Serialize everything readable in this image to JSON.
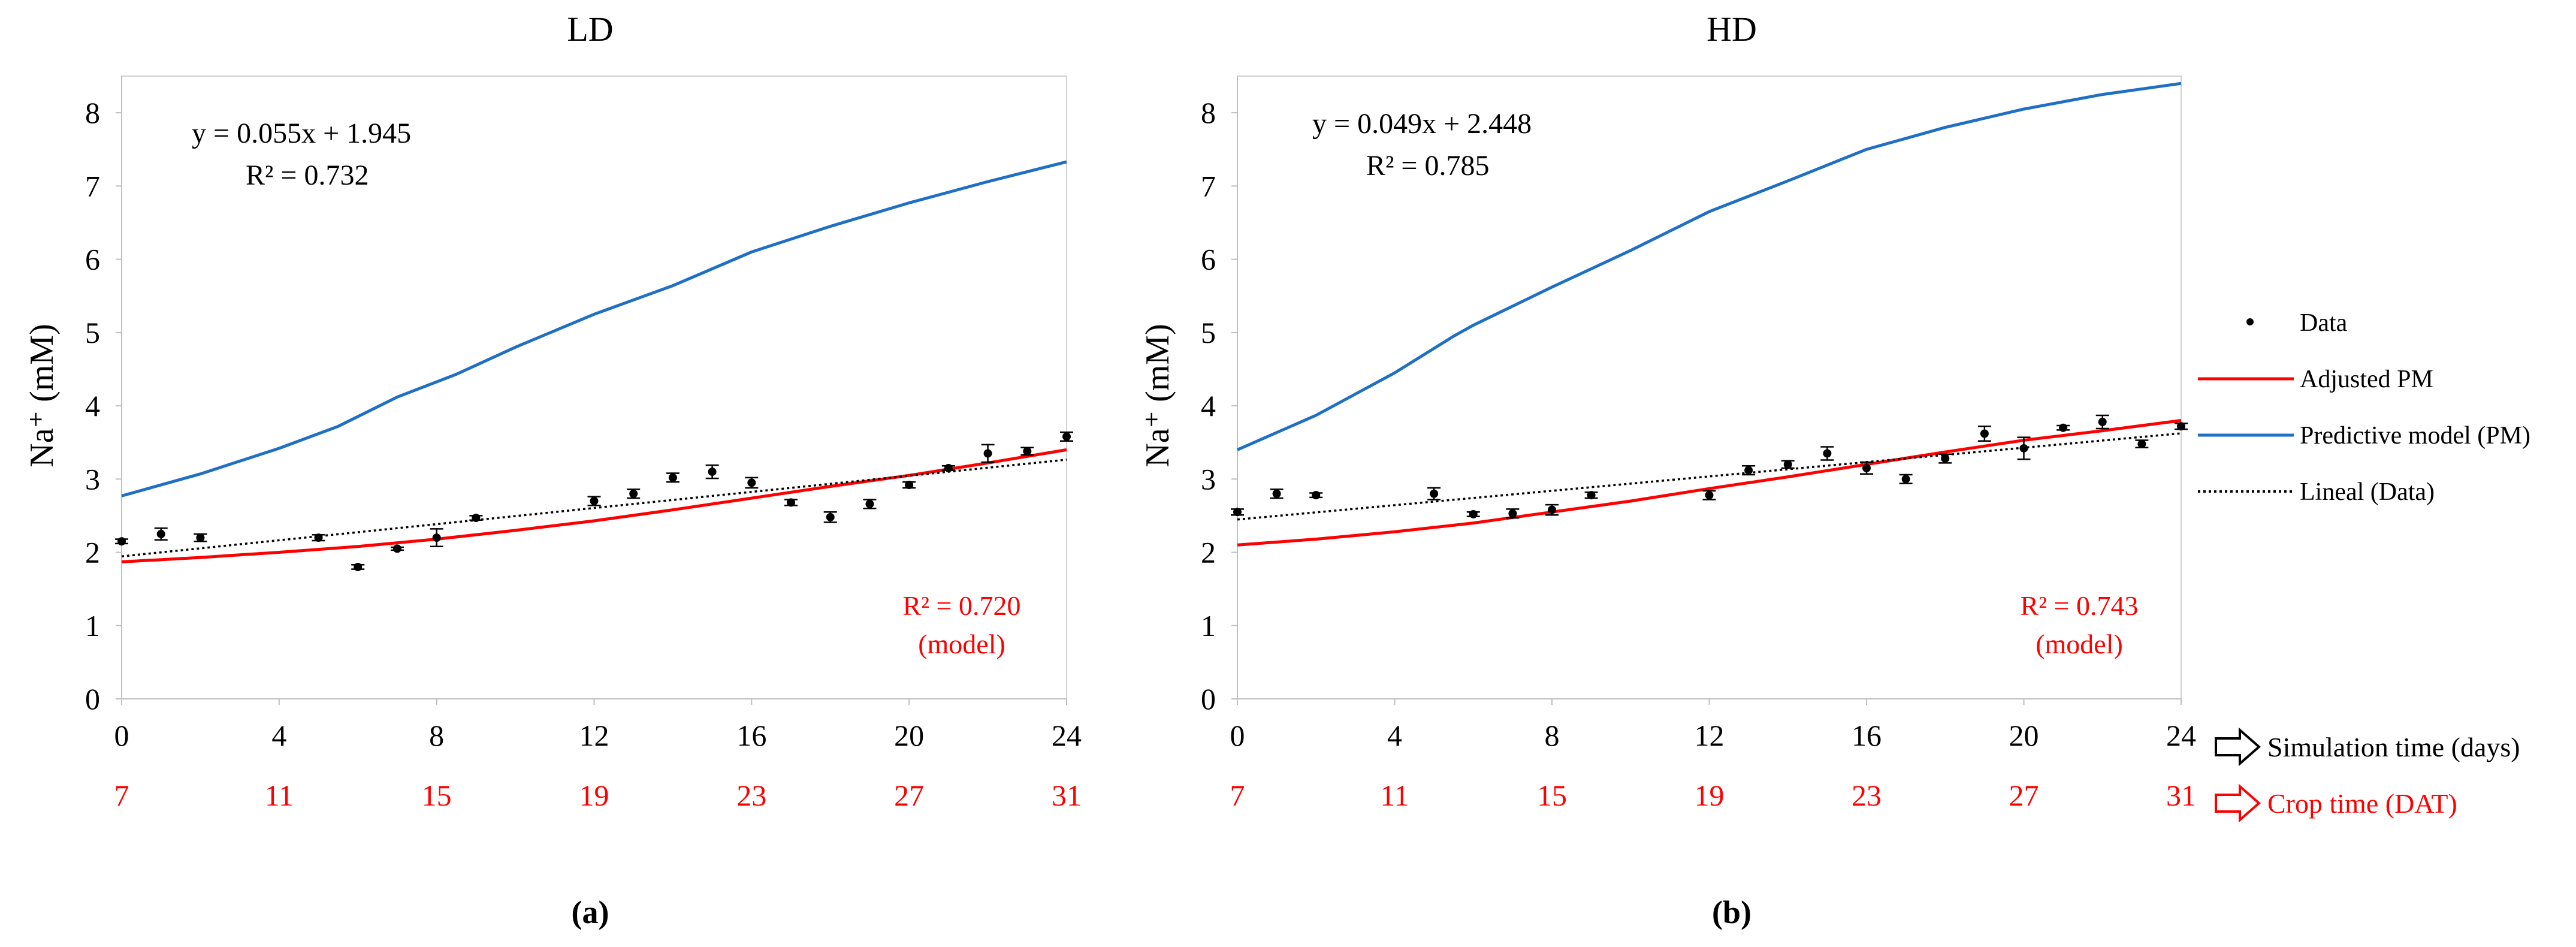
{
  "chart_data": [
    {
      "type": "line",
      "title": "LD",
      "panel_label": "(a)",
      "ylabel": "Na⁺ (mM)",
      "ylim": [
        0,
        8.5
      ],
      "yticks": [
        "0",
        "1",
        "2",
        "3",
        "4",
        "5",
        "6",
        "7",
        "8"
      ],
      "xlim": [
        0,
        24
      ],
      "xticks": [
        "0",
        "4",
        "8",
        "12",
        "16",
        "20",
        "24"
      ],
      "xticks_crop": [
        "7",
        "11",
        "15",
        "19",
        "23",
        "27",
        "31"
      ],
      "grid": false,
      "equation": "y = 0.055x + 1.945",
      "r2_data": "R² = 0.732",
      "r2_model": "R² = 0.720",
      "r2_model_note": "(model)",
      "series": [
        {
          "name": "Data",
          "type": "scatter",
          "x": [
            0,
            1,
            2,
            5,
            6,
            7,
            8,
            9,
            12,
            13,
            14,
            15,
            16,
            17,
            18,
            19,
            20,
            21,
            22,
            23,
            24
          ],
          "y": [
            2.15,
            2.25,
            2.2,
            2.2,
            1.8,
            2.05,
            2.2,
            2.47,
            2.7,
            2.8,
            3.02,
            3.1,
            2.95,
            2.68,
            2.48,
            2.66,
            2.92,
            3.15,
            3.35,
            3.38,
            3.58
          ],
          "err": [
            0.03,
            0.08,
            0.05,
            0.04,
            0.03,
            0.02,
            0.12,
            0.03,
            0.06,
            0.06,
            0.06,
            0.09,
            0.07,
            0.04,
            0.07,
            0.06,
            0.04,
            0.03,
            0.12,
            0.05,
            0.06
          ]
        },
        {
          "name": "Adjusted PM",
          "type": "line",
          "x": [
            0,
            2,
            4,
            6,
            8,
            10,
            12,
            14,
            16,
            18,
            20,
            22,
            24
          ],
          "y": [
            1.87,
            1.93,
            2.0,
            2.08,
            2.18,
            2.3,
            2.43,
            2.58,
            2.74,
            2.9,
            3.05,
            3.22,
            3.4
          ]
        },
        {
          "name": "Predictive model (PM)",
          "type": "line",
          "x": [
            0,
            2,
            4,
            5.5,
            7,
            8.5,
            10,
            12,
            14,
            16,
            18,
            20,
            22,
            24
          ],
          "y": [
            2.77,
            3.07,
            3.42,
            3.72,
            4.12,
            4.43,
            4.8,
            5.25,
            5.64,
            6.1,
            6.45,
            6.77,
            7.06,
            7.33
          ]
        },
        {
          "name": "Lineal (Data)",
          "type": "trend",
          "x": [
            0,
            24
          ],
          "y": [
            1.945,
            3.265
          ]
        }
      ]
    },
    {
      "type": "line",
      "title": "HD",
      "panel_label": "(b)",
      "ylabel": "Na⁺ (mM)",
      "ylim": [
        0,
        8.5
      ],
      "yticks": [
        "0",
        "1",
        "2",
        "3",
        "4",
        "5",
        "6",
        "7",
        "8"
      ],
      "xlim": [
        0,
        24
      ],
      "xticks": [
        "0",
        "4",
        "8",
        "12",
        "16",
        "20",
        "24"
      ],
      "xticks_crop": [
        "7",
        "11",
        "15",
        "19",
        "23",
        "27",
        "31"
      ],
      "grid": false,
      "equation": "y = 0.049x + 2.448",
      "r2_data": "R² = 0.785",
      "r2_model": "R² = 0.743",
      "r2_model_note": "(model)",
      "series": [
        {
          "name": "Data",
          "type": "scatter",
          "x": [
            0,
            1,
            2,
            5,
            6,
            7,
            8,
            9,
            12,
            13,
            14,
            15,
            16,
            17,
            18,
            19,
            20,
            21,
            22,
            23,
            24
          ],
          "y": [
            2.55,
            2.8,
            2.78,
            2.8,
            2.52,
            2.53,
            2.58,
            2.78,
            2.78,
            3.12,
            3.2,
            3.35,
            3.15,
            3.0,
            3.28,
            3.62,
            3.42,
            3.7,
            3.78,
            3.48,
            3.72
          ],
          "err": [
            0.04,
            0.06,
            0.03,
            0.08,
            0.03,
            0.06,
            0.07,
            0.04,
            0.06,
            0.06,
            0.05,
            0.09,
            0.08,
            0.06,
            0.06,
            0.1,
            0.15,
            0.03,
            0.09,
            0.05,
            0.04
          ]
        },
        {
          "name": "Adjusted PM",
          "type": "line",
          "x": [
            0,
            2,
            4,
            6,
            8,
            10,
            12,
            14,
            16,
            18,
            20,
            22,
            24
          ],
          "y": [
            2.1,
            2.18,
            2.28,
            2.4,
            2.55,
            2.7,
            2.87,
            3.03,
            3.2,
            3.37,
            3.53,
            3.66,
            3.8
          ]
        },
        {
          "name": "Predictive model (PM)",
          "type": "line",
          "x": [
            0,
            2,
            4,
            5.5,
            6,
            8,
            10,
            12,
            14,
            16,
            18,
            20,
            22,
            24
          ],
          "y": [
            3.4,
            3.87,
            4.45,
            4.95,
            5.1,
            5.62,
            6.12,
            6.65,
            7.07,
            7.5,
            7.8,
            8.05,
            8.25,
            8.4
          ]
        },
        {
          "name": "Lineal (Data)",
          "type": "trend",
          "x": [
            0,
            24
          ],
          "y": [
            2.448,
            3.624
          ]
        }
      ]
    }
  ],
  "legend": {
    "data": "Data",
    "adjusted": "Adjusted PM",
    "predictive": "Predictive model (PM)",
    "lineal": "Lineal (Data)"
  },
  "axis_labels": {
    "simulation": "Simulation time (days)",
    "crop": "Crop time (DAT)"
  },
  "colors": {
    "adjusted": "#ff0000",
    "predictive": "#1f6fc5",
    "data": "#000000",
    "lineal": "#000000",
    "crop_ticks": "#ff0000"
  }
}
